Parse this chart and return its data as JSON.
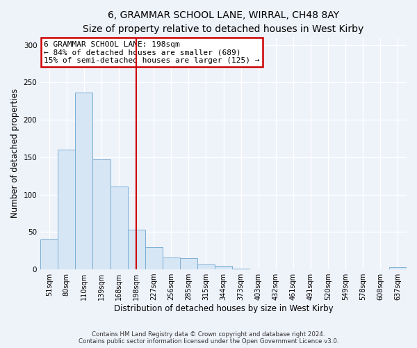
{
  "title": "6, GRAMMAR SCHOOL LANE, WIRRAL, CH48 8AY",
  "subtitle": "Size of property relative to detached houses in West Kirby",
  "xlabel": "Distribution of detached houses by size in West Kirby",
  "ylabel": "Number of detached properties",
  "bin_labels": [
    "51sqm",
    "80sqm",
    "110sqm",
    "139sqm",
    "168sqm",
    "198sqm",
    "227sqm",
    "256sqm",
    "285sqm",
    "315sqm",
    "344sqm",
    "373sqm",
    "403sqm",
    "432sqm",
    "461sqm",
    "491sqm",
    "520sqm",
    "549sqm",
    "578sqm",
    "608sqm",
    "637sqm"
  ],
  "bar_heights": [
    40,
    160,
    236,
    147,
    111,
    53,
    30,
    16,
    15,
    7,
    5,
    1,
    0,
    0,
    0,
    0,
    0,
    0,
    0,
    0,
    3
  ],
  "bar_color": "#d6e6f5",
  "bar_edge_color": "#7bafd4",
  "vline_x": 5,
  "vline_color": "#cc0000",
  "ylim": [
    0,
    310
  ],
  "yticks": [
    0,
    50,
    100,
    150,
    200,
    250,
    300
  ],
  "annotation_line1": "6 GRAMMAR SCHOOL LANE: 198sqm",
  "annotation_line2": "← 84% of detached houses are smaller (689)",
  "annotation_line3": "15% of semi-detached houses are larger (125) →",
  "annotation_box_color": "#cc0000",
  "footnote1": "Contains HM Land Registry data © Crown copyright and database right 2024.",
  "footnote2": "Contains public sector information licensed under the Open Government Licence v3.0.",
  "bg_color": "#eef2f9",
  "grid_color": "#ffffff",
  "title_fontsize": 10,
  "axis_label_fontsize": 8.5,
  "tick_fontsize": 7,
  "annot_fontsize": 8
}
